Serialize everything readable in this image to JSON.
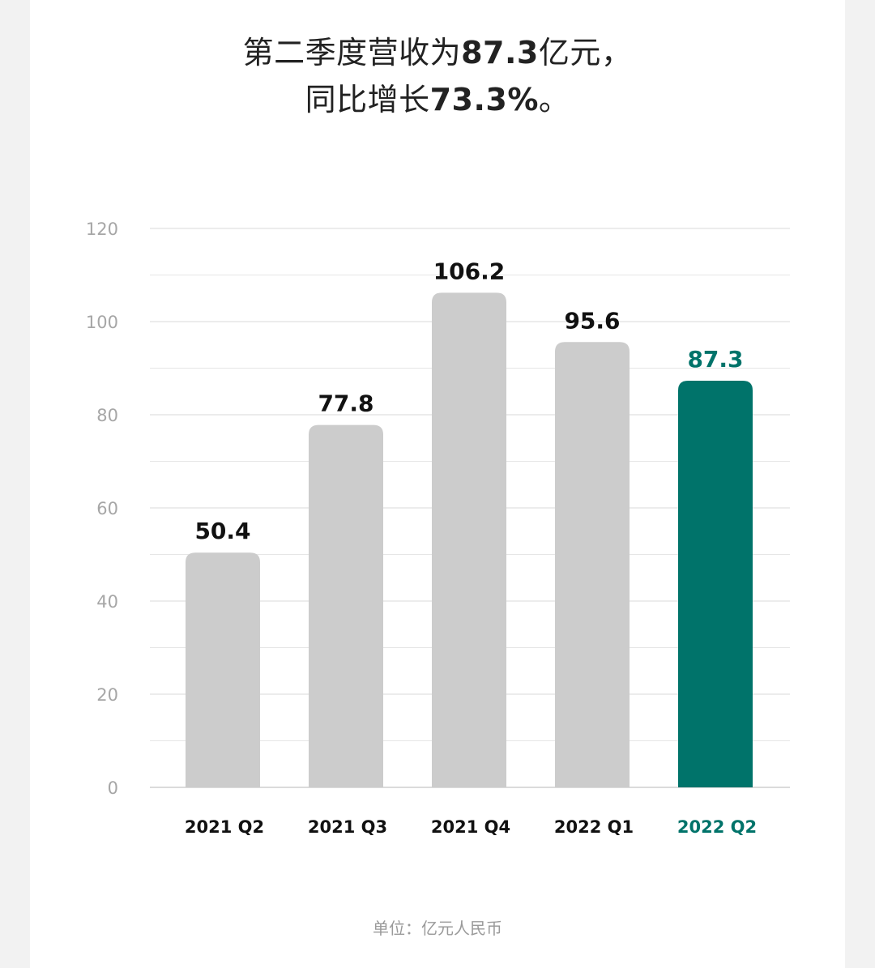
{
  "headline": {
    "line1_prefix": "第二季度营收为",
    "line1_value": "87.3",
    "line1_suffix": "亿元，",
    "line2_prefix": "同比增长",
    "line2_value": "73.3%",
    "line2_suffix": "。"
  },
  "footnote": "单位：亿元人民币",
  "colors": {
    "bar_default": "#cccccc",
    "bar_highlight": "#00736a",
    "label_default": "#111111",
    "label_highlight": "#00736a",
    "grid": "#e6e6e6",
    "axis": "#cfcfcf"
  },
  "chart_data": {
    "type": "bar",
    "categories": [
      "2021 Q2",
      "2021 Q3",
      "2021 Q4",
      "2022 Q1",
      "2022 Q2"
    ],
    "values": [
      50.4,
      77.8,
      106.2,
      95.6,
      87.3
    ],
    "value_labels": [
      "50.4",
      "77.8",
      "106.2",
      "95.6",
      "87.3"
    ],
    "highlight_index": 4,
    "ylim": [
      0,
      120
    ],
    "yticks": [
      0,
      20,
      40,
      60,
      80,
      100,
      120
    ],
    "ytick_labels": [
      "0",
      "20",
      "40",
      "60",
      "80",
      "100",
      "120"
    ],
    "grid": true,
    "title": "",
    "xlabel": "",
    "ylabel": ""
  }
}
